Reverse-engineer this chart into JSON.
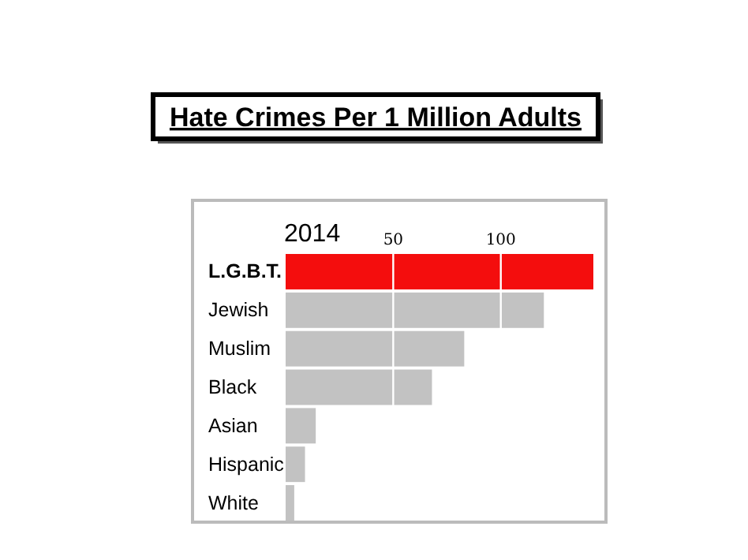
{
  "chart_data": {
    "type": "bar",
    "orientation": "horizontal",
    "title": "Hate Crimes Per 1 Million Adults",
    "subtitle": "2014",
    "categories": [
      "L.G.B.T.",
      "Jewish",
      "Muslim",
      "Black",
      "Asian",
      "Hispanic",
      "White"
    ],
    "values": [
      143,
      120,
      83,
      68,
      14,
      9,
      4
    ],
    "colors": [
      "#f40d0d",
      "#c2c2c2",
      "#c2c2c2",
      "#c2c2c2",
      "#c2c2c2",
      "#c2c2c2",
      "#c2c2c2"
    ],
    "xlim": [
      0,
      143
    ],
    "xticks": [
      50,
      100
    ],
    "grid": "x"
  }
}
